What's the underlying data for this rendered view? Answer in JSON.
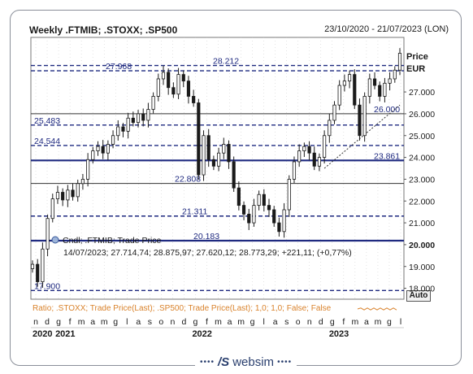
{
  "header": {
    "title": "Weekly .FTMIB; .STOXX; .SP500",
    "date_range": "23/10/2020 - 21/07/2023 (LON)"
  },
  "price_label": "Price",
  "currency_label": "EUR",
  "auto_button": "Auto",
  "legend": {
    "series_line": "Cndl; .FTMIB; Trade Price",
    "values_line": "14/07/2023; 27.714,74; 28.875,97; 27.620,12; 28.773,29; +221,11; (+0,77%)"
  },
  "ratio_text": "Ratio; .STOXX; Trade Price(Last); .SP500; Trade Price(Last); 1,0; 1,0; False; False",
  "logo": {
    "mark": "/S",
    "text": "websim"
  },
  "colors": {
    "bull": "#ffffff",
    "bear": "#1a1a1a",
    "hline": "#1f2a80",
    "ratio": "#d9822b",
    "grid": "#c8c8c8"
  },
  "chart_data": {
    "type": "candlestick",
    "ylim": [
      17500,
      29500
    ],
    "y_ticks": [
      "27.000",
      "26.000",
      "25.000",
      "24.000",
      "23.000",
      "22.000",
      "21.000",
      "20.000",
      "19.000",
      "18.000"
    ],
    "y_tick_values": [
      27000,
      26000,
      25000,
      24000,
      23000,
      22000,
      21000,
      20000,
      19000,
      18000
    ],
    "current_price": "20.000",
    "x_month_labels": [
      "n",
      "d",
      "g",
      "f",
      "m",
      "a",
      "m",
      "g",
      "l",
      "a",
      "s",
      "o",
      "n",
      "d",
      "g",
      "f",
      "m",
      "a",
      "m",
      "g",
      "l",
      "a",
      "s",
      "o",
      "n",
      "d",
      "g",
      "f",
      "m",
      "a",
      "m",
      "g",
      "l"
    ],
    "x_year_labels": [
      {
        "label": "2020",
        "index": 0
      },
      {
        "label": "2021",
        "index": 2
      },
      {
        "label": "2022",
        "index": 14
      },
      {
        "label": "2023",
        "index": 26
      }
    ],
    "levels": [
      {
        "value": 28212,
        "label": "28.212",
        "style": "dashed"
      },
      {
        "value": 27968,
        "label": "27.968",
        "style": "dashed"
      },
      {
        "value": 26000,
        "label": "26.000",
        "style": "solid"
      },
      {
        "value": 25483,
        "label": "25.483",
        "style": "dashed"
      },
      {
        "value": 24544,
        "label": "24.544",
        "style": "dashed"
      },
      {
        "value": 23861,
        "label": "23.861",
        "style": "solid-bold"
      },
      {
        "value": 22808,
        "label": "22.808",
        "style": "solid"
      },
      {
        "value": 21311,
        "label": "21.311",
        "style": "dashed"
      },
      {
        "value": 20183,
        "label": "20.183",
        "style": "solid-bold"
      },
      {
        "value": 17900,
        "label": "17.900",
        "style": "dashed"
      }
    ],
    "close_path": [
      [
        0,
        19100
      ],
      [
        1,
        18300
      ],
      [
        2,
        19800
      ],
      [
        3,
        21200
      ],
      [
        4,
        22100
      ],
      [
        5,
        22400
      ],
      [
        6,
        22050
      ],
      [
        7,
        22500
      ],
      [
        8,
        22200
      ],
      [
        9,
        22800
      ],
      [
        10,
        23000
      ],
      [
        11,
        23900
      ],
      [
        12,
        24300
      ],
      [
        13,
        24500
      ],
      [
        14,
        24200
      ],
      [
        15,
        24600
      ],
      [
        16,
        25000
      ],
      [
        17,
        25400
      ],
      [
        18,
        25200
      ],
      [
        19,
        25800
      ],
      [
        20,
        25600
      ],
      [
        21,
        26000
      ],
      [
        22,
        25700
      ],
      [
        23,
        26200
      ],
      [
        24,
        26800
      ],
      [
        25,
        27600
      ],
      [
        26,
        27900
      ],
      [
        27,
        27200
      ],
      [
        28,
        26900
      ],
      [
        29,
        27800
      ],
      [
        30,
        27500
      ],
      [
        31,
        26800
      ],
      [
        32,
        26500
      ],
      [
        33,
        23200
      ],
      [
        34,
        25000
      ],
      [
        35,
        23900
      ],
      [
        36,
        23600
      ],
      [
        37,
        24200
      ],
      [
        38,
        24600
      ],
      [
        39,
        23800
      ],
      [
        40,
        22600
      ],
      [
        41,
        21800
      ],
      [
        42,
        21400
      ],
      [
        43,
        21000
      ],
      [
        44,
        21800
      ],
      [
        45,
        22300
      ],
      [
        46,
        21800
      ],
      [
        47,
        21600
      ],
      [
        48,
        21000
      ],
      [
        49,
        20600
      ],
      [
        50,
        21600
      ],
      [
        51,
        23000
      ],
      [
        52,
        23800
      ],
      [
        53,
        24300
      ],
      [
        54,
        24500
      ],
      [
        55,
        24200
      ],
      [
        56,
        23600
      ],
      [
        57,
        24000
      ],
      [
        58,
        25000
      ],
      [
        59,
        25700
      ],
      [
        60,
        26400
      ],
      [
        61,
        27300
      ],
      [
        62,
        27500
      ],
      [
        63,
        27800
      ],
      [
        64,
        26400
      ],
      [
        65,
        25000
      ],
      [
        66,
        26800
      ],
      [
        67,
        27600
      ],
      [
        68,
        27300
      ],
      [
        69,
        26800
      ],
      [
        70,
        27400
      ],
      [
        71,
        27600
      ],
      [
        72,
        28000
      ],
      [
        73,
        28773
      ]
    ],
    "trendline": [
      [
        58,
        23500
      ],
      [
        73,
        26400
      ]
    ]
  }
}
